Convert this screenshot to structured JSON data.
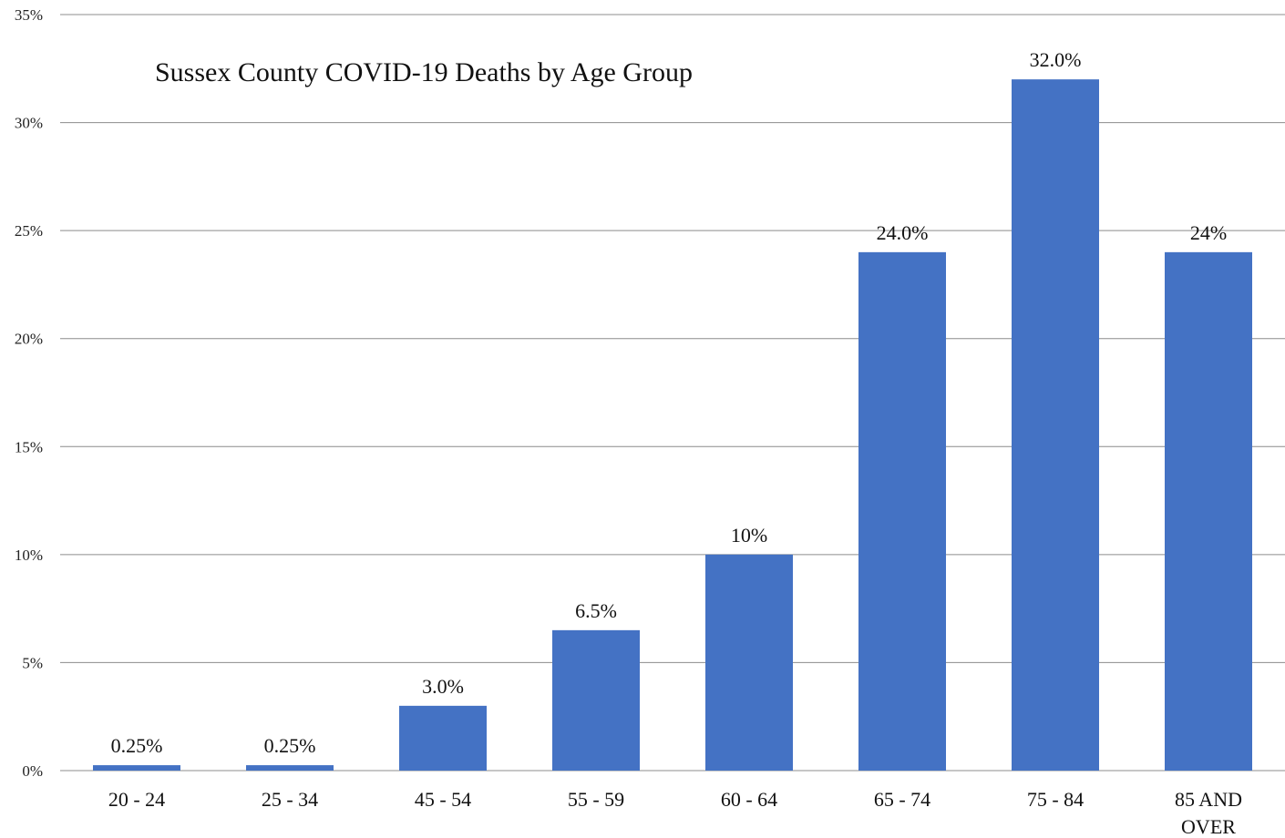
{
  "chart_data": {
    "type": "bar",
    "title": "Sussex County COVID-19 Deaths by Age Group",
    "xlabel": "",
    "ylabel": "",
    "categories": [
      "20 - 24",
      "25 - 34",
      "45 - 54",
      "55 - 59",
      "60 - 64",
      "65 - 74",
      "75 - 84",
      "85 AND OVER"
    ],
    "values": [
      0.25,
      0.25,
      3.0,
      6.5,
      10,
      24.0,
      32.0,
      24
    ],
    "data_labels": [
      "0.25%",
      "0.25%",
      "3.0%",
      "6.5%",
      "10%",
      "24.0%",
      "32.0%",
      "24%"
    ],
    "ylim": [
      0,
      35
    ],
    "yticks": [
      0,
      5,
      10,
      15,
      20,
      25,
      30,
      35
    ],
    "ytick_labels": [
      "0%",
      "5%",
      "10%",
      "15%",
      "20%",
      "25%",
      "30%",
      "35%"
    ],
    "grid": true,
    "legend": "none",
    "bar_color": "#4472C4",
    "grid_color": "#8c8c8c"
  }
}
